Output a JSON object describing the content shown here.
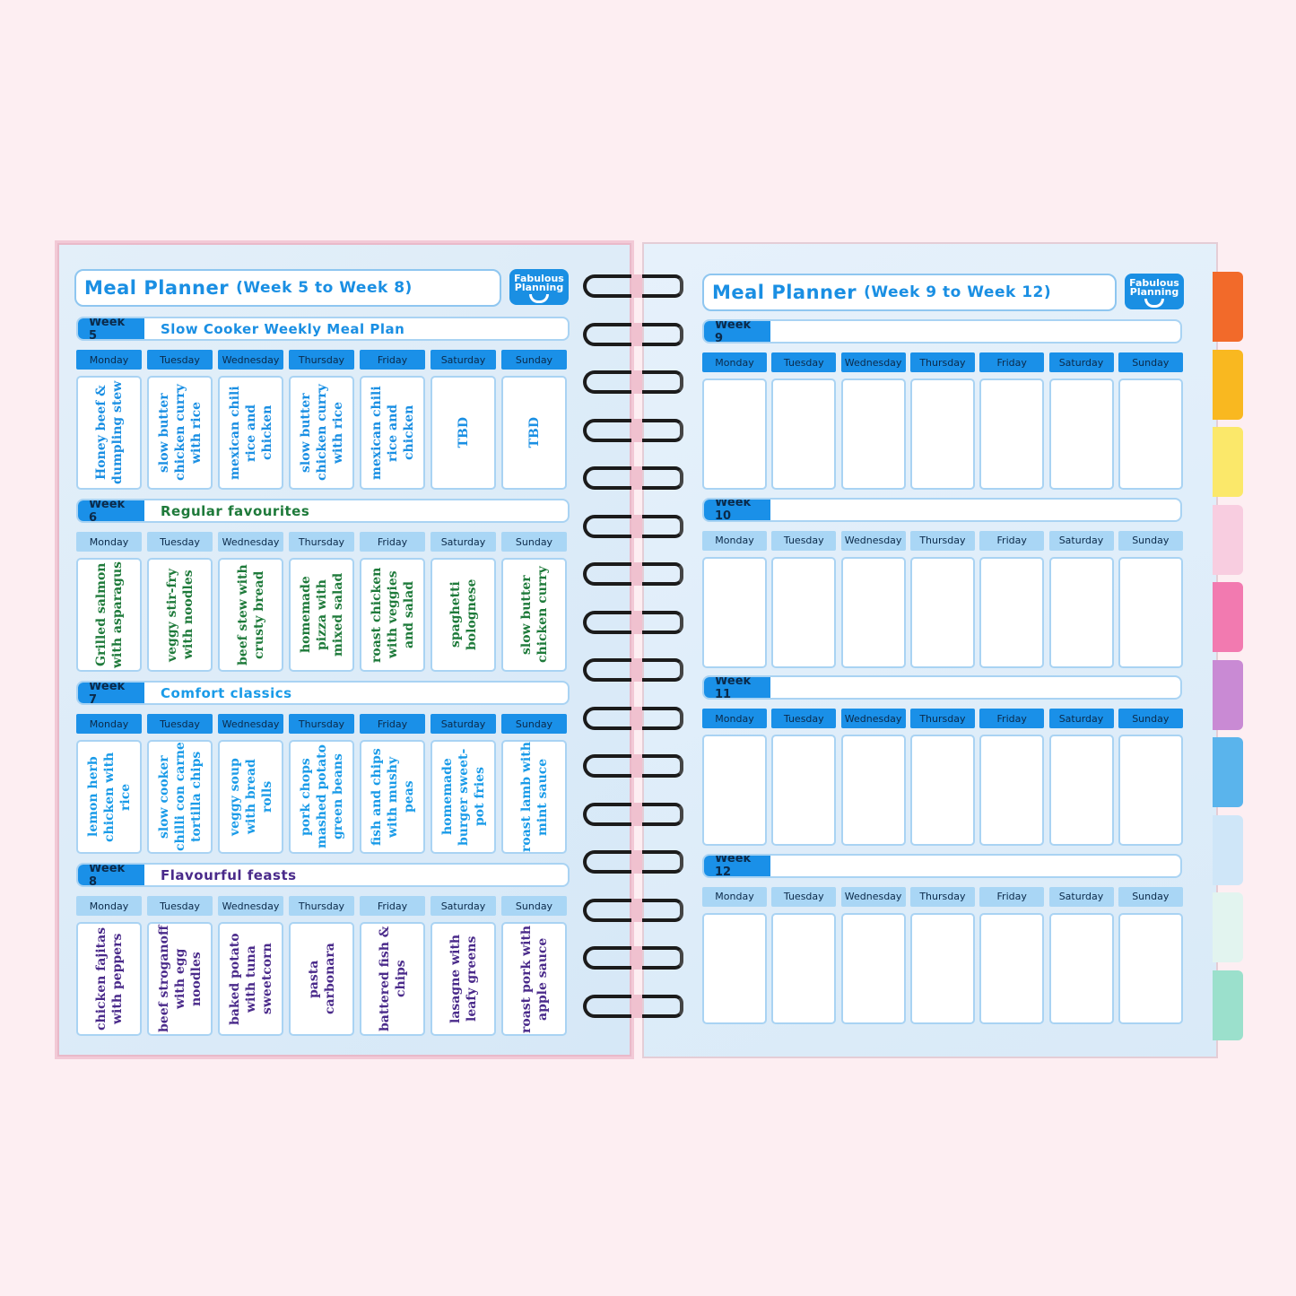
{
  "days": [
    "Monday",
    "Tuesday",
    "Wednesday",
    "Thursday",
    "Friday",
    "Saturday",
    "Sunday"
  ],
  "logo": "Fabulous Planning",
  "left": {
    "title": "Meal Planner",
    "subtitle": "(Week 5 to Week 8)",
    "weeks": [
      {
        "label": "Week 5",
        "theme": "Slow Cooker Weekly Meal Plan",
        "color": "#1a8fe3",
        "day_bar": "blue",
        "meals": [
          "Honey beef & dumpling stew",
          "slow butter chicken curry with rice",
          "mexican chili rice and chicken",
          "slow butter chicken curry with rice",
          "mexican chili rice and chicken",
          "TBD",
          "TBD"
        ]
      },
      {
        "label": "Week 6",
        "theme": "Regular favourites",
        "color": "#1e7a3a",
        "day_bar": "light",
        "meals": [
          "Grilled salmon with asparagus",
          "veggy stir-fry with noodles",
          "beef stew with crusty bread",
          "homemade pizza with mixed salad",
          "roast chicken with veggies and salad",
          "spaghetti bolognese",
          "slow butter chicken curry"
        ]
      },
      {
        "label": "Week 7",
        "theme": "Comfort classics",
        "color": "#1a9be8",
        "day_bar": "blue",
        "meals": [
          "lemon herb chicken with rice",
          "slow cooker chilli con carne tortilla chips",
          "veggy soup with bread rolls",
          "pork chops mashed potato green beans",
          "fish and chips with mushy peas",
          "homemade burger sweet-pot fries",
          "roast lamb with mint sauce"
        ]
      },
      {
        "label": "Week 8",
        "theme": "Flavourful feasts",
        "color": "#4a2a8a",
        "day_bar": "light",
        "meals": [
          "chicken fajitas with peppers",
          "beef stroganoff with egg noodles",
          "baked potato with tuna sweetcorn",
          "pasta carbonara",
          "battered fish & chips",
          "lasagne with leafy greens",
          "roast pork with apple sauce"
        ]
      }
    ]
  },
  "right": {
    "title": "Meal Planner",
    "subtitle": "(Week 9 to Week 12)",
    "weeks": [
      {
        "label": "Week 9",
        "day_bar": "blue"
      },
      {
        "label": "Week 10",
        "day_bar": "light"
      },
      {
        "label": "Week 11",
        "day_bar": "blue"
      },
      {
        "label": "Week 12",
        "day_bar": "light"
      }
    ]
  },
  "tab_colors": [
    "#f26a2a",
    "#f9b820",
    "#fbe86a",
    "#f8cde0",
    "#f27ab0",
    "#c98ad4",
    "#5ab4ec",
    "#cfe6f8",
    "#e2f4ef",
    "#9be0cc"
  ]
}
